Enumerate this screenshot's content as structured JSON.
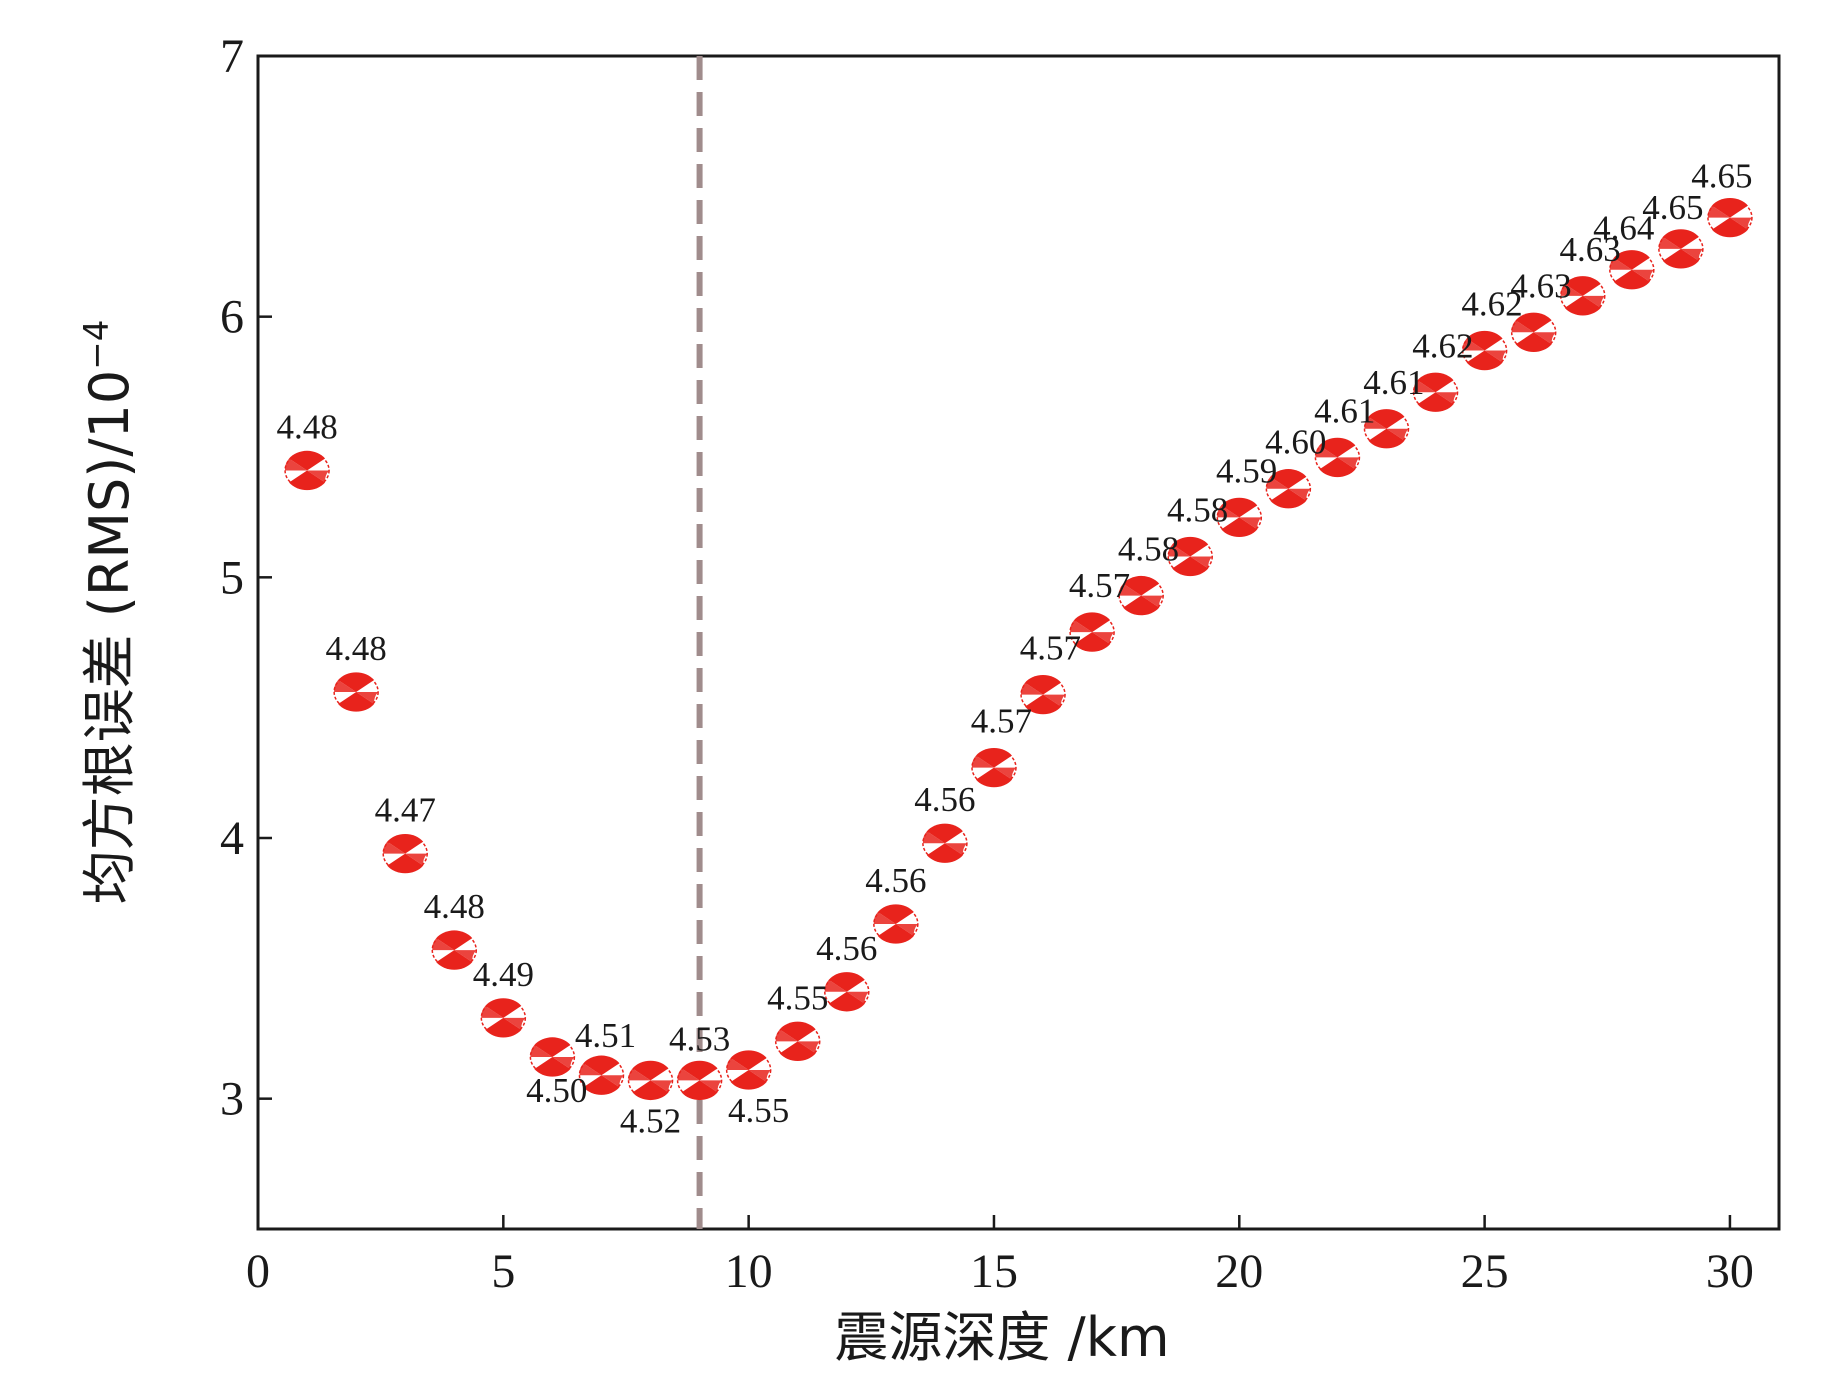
{
  "chart_data": {
    "type": "scatter",
    "title": "",
    "xlabel": "震源深度 /km",
    "ylabel": "均方根误差 (RMS)/10",
    "ylabel_exponent": "−4",
    "xlim": [
      0,
      31
    ],
    "ylim": [
      2.5,
      7
    ],
    "xticks": [
      0,
      5,
      10,
      15,
      20,
      25,
      30
    ],
    "yticks": [
      3,
      4,
      5,
      6,
      7
    ],
    "reference_line_x": 9,
    "reference_line_color": "#a08c8c",
    "marker_color": "#e8231c",
    "grid": false,
    "series": [
      {
        "x": [
          1,
          2,
          3,
          4,
          5,
          6,
          7,
          8,
          9,
          10,
          11,
          12,
          13,
          14,
          15,
          16,
          17,
          18,
          19,
          20,
          21,
          22,
          23,
          24,
          25,
          26,
          27,
          28,
          29,
          30
        ],
        "y": [
          5.41,
          4.56,
          3.94,
          3.57,
          3.31,
          3.16,
          3.09,
          3.07,
          3.07,
          3.11,
          3.22,
          3.41,
          3.67,
          3.98,
          4.27,
          4.55,
          4.79,
          4.93,
          5.08,
          5.23,
          5.34,
          5.46,
          5.57,
          5.71,
          5.87,
          5.94,
          6.08,
          6.18,
          6.26,
          6.38
        ],
        "labels": [
          "4.48",
          "4.48",
          "4.47",
          "4.48",
          "4.49",
          "4.50",
          "4.51",
          "4.52",
          "4.53",
          "4.55",
          "4.55",
          "4.56",
          "4.56",
          "4.56",
          "4.57",
          "4.57",
          "4.57",
          "4.58",
          "4.58",
          "4.59",
          "4.60",
          "4.61",
          "4.61",
          "4.62",
          "4.62",
          "4.63",
          "4.63",
          "4.64",
          "4.65",
          "4.65"
        ]
      }
    ]
  }
}
